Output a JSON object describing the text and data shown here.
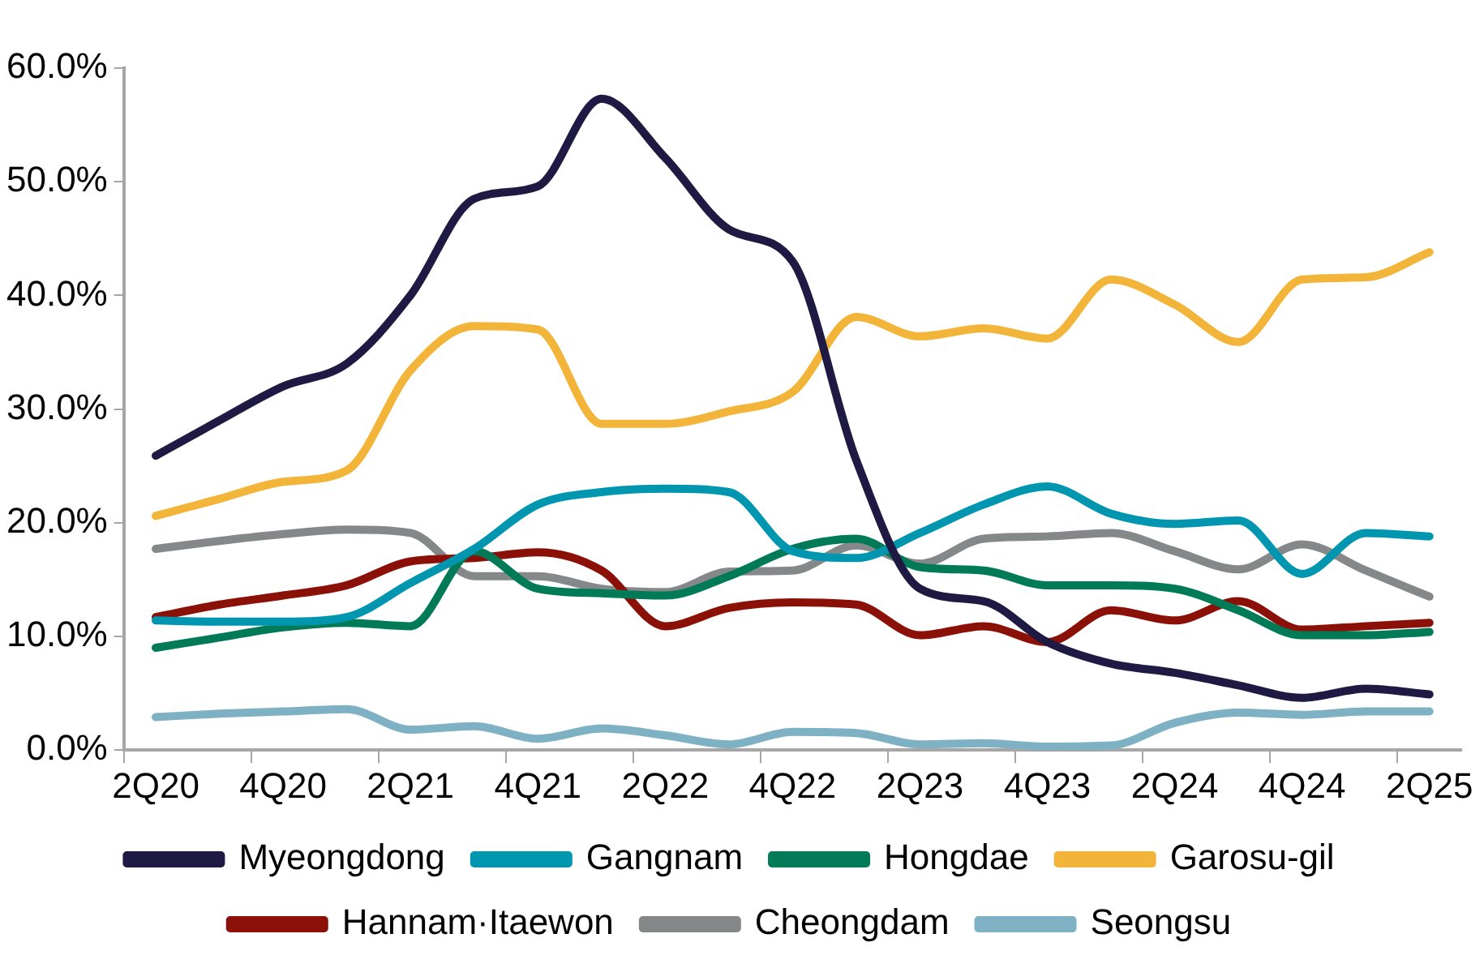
{
  "chart_data": {
    "type": "line",
    "categories": [
      "2Q20",
      null,
      "4Q20",
      null,
      "2Q21",
      null,
      "4Q21",
      null,
      "2Q22",
      null,
      "4Q22",
      null,
      "2Q23",
      null,
      "4Q23",
      null,
      "2Q24",
      null,
      "4Q24",
      null,
      "2Q25"
    ],
    "ylim": [
      0,
      60
    ],
    "yticks": [
      {
        "value": 0,
        "label": "0.0%"
      },
      {
        "value": 10,
        "label": "10.0%"
      },
      {
        "value": 20,
        "label": "20.0%"
      },
      {
        "value": 30,
        "label": "30.0%"
      },
      {
        "value": 40,
        "label": "40.0%"
      },
      {
        "value": 50,
        "label": "50.0%"
      },
      {
        "value": 60,
        "label": "60.0%"
      }
    ],
    "grid": false,
    "legend": "bottom",
    "marker": "none",
    "line_style": "solid",
    "series": [
      {
        "name": "Myeongdong",
        "color": "#1f1a44",
        "values": [
          25.9,
          29.0,
          32.0,
          34.0,
          40.0,
          48.5,
          49.6,
          57.3,
          52.1,
          45.8,
          43.0,
          25.5,
          14.2,
          13.1,
          9.5,
          7.6,
          6.8,
          5.7,
          4.6,
          5.4,
          4.9
        ]
      },
      {
        "name": "Gangnam",
        "color": "#0096b0",
        "values": [
          11.4,
          11.3,
          11.3,
          11.7,
          14.7,
          17.7,
          21.6,
          22.7,
          23.0,
          22.7,
          17.5,
          16.9,
          19.1,
          21.6,
          23.2,
          20.8,
          19.9,
          20.2,
          15.5,
          19.1,
          18.8
        ]
      },
      {
        "name": "Hongdae",
        "color": "#007a57",
        "values": [
          9.0,
          9.9,
          10.8,
          11.2,
          10.9,
          17.5,
          14.2,
          13.8,
          13.6,
          15.3,
          17.7,
          18.6,
          16.1,
          15.8,
          14.5,
          14.5,
          14.2,
          12.3,
          10.1,
          10.1,
          10.4
        ]
      },
      {
        "name": "Garosu-gil",
        "color": "#f2b53a",
        "values": [
          20.6,
          22.1,
          23.6,
          24.6,
          33.4,
          37.3,
          37.0,
          28.7,
          28.7,
          29.8,
          31.5,
          38.1,
          36.4,
          37.1,
          36.2,
          41.4,
          39.2,
          35.9,
          41.4,
          41.6,
          43.8
        ]
      },
      {
        "name": "Hannam·Itaewon",
        "color": "#8b1108",
        "values": [
          11.7,
          12.8,
          13.6,
          14.5,
          16.6,
          16.9,
          17.4,
          15.8,
          10.9,
          12.5,
          13.0,
          12.8,
          10.1,
          10.9,
          9.5,
          12.3,
          11.4,
          13.1,
          10.6,
          10.9,
          11.2
        ]
      },
      {
        "name": "Cheongdam",
        "color": "#858889",
        "values": [
          17.7,
          18.4,
          19.0,
          19.4,
          19.1,
          15.3,
          15.3,
          14.2,
          13.9,
          15.7,
          15.8,
          18.0,
          16.4,
          18.6,
          18.8,
          19.1,
          17.5,
          15.9,
          18.1,
          15.8,
          13.5
        ]
      },
      {
        "name": "Seongsu",
        "color": "#7fb1c4",
        "values": [
          2.9,
          3.2,
          3.4,
          3.6,
          1.8,
          2.1,
          1.0,
          1.9,
          1.3,
          0.5,
          1.6,
          1.5,
          0.5,
          0.6,
          0.3,
          0.4,
          2.4,
          3.3,
          3.1,
          3.4,
          3.4
        ]
      }
    ]
  }
}
